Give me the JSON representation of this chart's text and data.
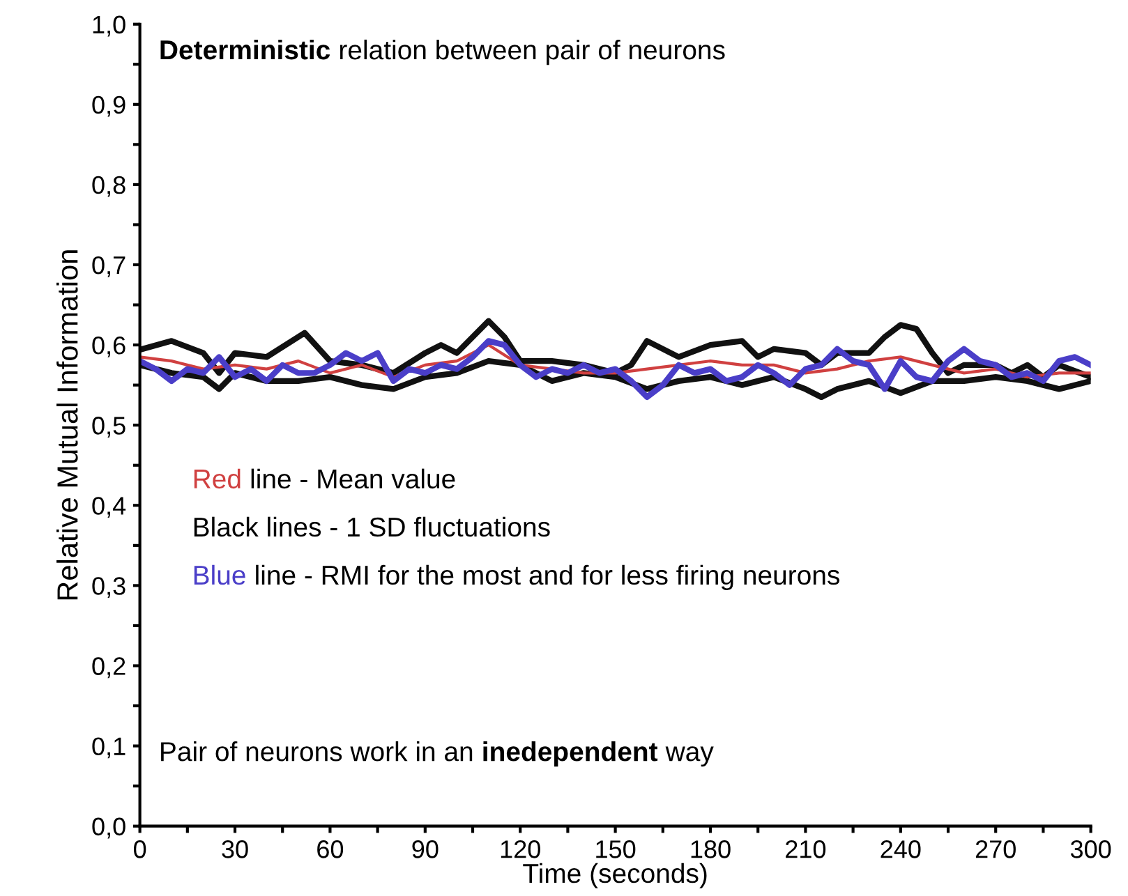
{
  "chart_data": {
    "type": "line",
    "xlabel": "Time (seconds)",
    "ylabel": "Relative Mutual Information",
    "xlim": [
      0,
      300
    ],
    "ylim": [
      0,
      1
    ],
    "xticks": [
      0,
      {
        "value": 15,
        "label": null
      },
      30,
      {
        "value": 45,
        "label": null
      },
      60,
      {
        "value": 75,
        "label": null
      },
      90,
      {
        "value": 105,
        "label": null
      },
      120,
      {
        "value": 135,
        "label": null
      },
      150,
      {
        "value": 165,
        "label": null
      },
      180,
      {
        "value": 195,
        "label": null
      },
      210,
      {
        "value": 225,
        "label": null
      },
      240,
      {
        "value": 255,
        "label": null
      },
      270,
      {
        "value": 285,
        "label": null
      },
      300
    ],
    "yticks": [
      {
        "value": 0,
        "label": "0,0"
      },
      {
        "value": 0.05,
        "label": null
      },
      {
        "value": 0.1,
        "label": "0,1"
      },
      {
        "value": 0.15,
        "label": null
      },
      {
        "value": 0.2,
        "label": "0,2"
      },
      {
        "value": 0.25,
        "label": null
      },
      {
        "value": 0.3,
        "label": "0,3"
      },
      {
        "value": 0.35,
        "label": null
      },
      {
        "value": 0.4,
        "label": "0,4"
      },
      {
        "value": 0.45,
        "label": null
      },
      {
        "value": 0.5,
        "label": "0,5"
      },
      {
        "value": 0.55,
        "label": null
      },
      {
        "value": 0.6,
        "label": "0,6"
      },
      {
        "value": 0.65,
        "label": null
      },
      {
        "value": 0.7,
        "label": "0,7"
      },
      {
        "value": 0.75,
        "label": null
      },
      {
        "value": 0.8,
        "label": "0,8"
      },
      {
        "value": 0.85,
        "label": null
      },
      {
        "value": 0.9,
        "label": "0,9"
      },
      {
        "value": 0.95,
        "label": null
      },
      {
        "value": 1.0,
        "label": "1,0"
      }
    ],
    "grid": false,
    "legend": false,
    "marker": "none",
    "line_style": "solid",
    "annotations": [
      "Deterministic",
      "relation between pair of neurons",
      "Red",
      "line - Mean value",
      "Black lines - 1 SD fluctuations",
      "Blue",
      "line - RMI for the most and for less firing neurons",
      "Pair of neurons work in an",
      "inedependent",
      "way"
    ],
    "series": [
      {
        "color": "#111111",
        "x": [
          0,
          10,
          20,
          25,
          30,
          40,
          52,
          60,
          70,
          80,
          90,
          95,
          100,
          110,
          115,
          120,
          130,
          140,
          150,
          155,
          160,
          165,
          170,
          180,
          190,
          195,
          200,
          210,
          215,
          220,
          230,
          235,
          240,
          245,
          250,
          255,
          260,
          270,
          275,
          280,
          285,
          290,
          300
        ],
        "values": [
          0.594,
          0.605,
          0.59,
          0.565,
          0.59,
          0.585,
          0.615,
          0.58,
          0.575,
          0.565,
          0.59,
          0.6,
          0.59,
          0.63,
          0.61,
          0.58,
          0.58,
          0.575,
          0.565,
          0.575,
          0.605,
          0.595,
          0.585,
          0.6,
          0.605,
          0.585,
          0.595,
          0.59,
          0.575,
          0.59,
          0.59,
          0.61,
          0.625,
          0.62,
          0.59,
          0.565,
          0.575,
          0.575,
          0.565,
          0.575,
          0.56,
          0.575,
          0.56
        ]
      },
      {
        "color": "#111111",
        "x": [
          0,
          10,
          20,
          25,
          30,
          40,
          50,
          60,
          70,
          80,
          90,
          100,
          110,
          120,
          130,
          140,
          150,
          160,
          170,
          180,
          190,
          200,
          210,
          215,
          220,
          230,
          240,
          250,
          260,
          270,
          280,
          290,
          300
        ],
        "values": [
          0.575,
          0.565,
          0.56,
          0.545,
          0.565,
          0.555,
          0.555,
          0.56,
          0.55,
          0.545,
          0.56,
          0.565,
          0.58,
          0.575,
          0.555,
          0.565,
          0.56,
          0.545,
          0.555,
          0.56,
          0.55,
          0.56,
          0.545,
          0.535,
          0.545,
          0.555,
          0.54,
          0.555,
          0.555,
          0.56,
          0.555,
          0.545,
          0.555
        ]
      },
      {
        "color": "#d04040",
        "x": [
          0,
          10,
          20,
          30,
          40,
          50,
          60,
          70,
          80,
          90,
          100,
          110,
          120,
          130,
          140,
          150,
          160,
          170,
          180,
          190,
          200,
          210,
          220,
          230,
          240,
          250,
          260,
          270,
          280,
          290,
          300
        ],
        "values": [
          0.585,
          0.58,
          0.57,
          0.575,
          0.57,
          0.58,
          0.565,
          0.575,
          0.56,
          0.575,
          0.58,
          0.6,
          0.575,
          0.57,
          0.565,
          0.565,
          0.57,
          0.575,
          0.58,
          0.575,
          0.575,
          0.565,
          0.57,
          0.58,
          0.585,
          0.575,
          0.565,
          0.57,
          0.56,
          0.565,
          0.565
        ]
      },
      {
        "color": "#4a3ec8",
        "x": [
          0,
          5,
          10,
          15,
          20,
          25,
          30,
          35,
          40,
          45,
          50,
          55,
          60,
          65,
          70,
          75,
          80,
          85,
          90,
          95,
          100,
          105,
          110,
          115,
          120,
          125,
          130,
          135,
          140,
          145,
          150,
          155,
          160,
          165,
          170,
          175,
          180,
          185,
          190,
          195,
          200,
          205,
          210,
          215,
          220,
          225,
          230,
          235,
          240,
          245,
          250,
          255,
          260,
          265,
          270,
          275,
          280,
          285,
          290,
          295,
          300
        ],
        "values": [
          0.58,
          0.57,
          0.555,
          0.57,
          0.565,
          0.585,
          0.56,
          0.57,
          0.555,
          0.575,
          0.565,
          0.565,
          0.575,
          0.59,
          0.58,
          0.59,
          0.555,
          0.57,
          0.565,
          0.575,
          0.57,
          0.585,
          0.605,
          0.6,
          0.575,
          0.56,
          0.57,
          0.565,
          0.575,
          0.565,
          0.57,
          0.555,
          0.535,
          0.55,
          0.575,
          0.565,
          0.57,
          0.555,
          0.56,
          0.575,
          0.565,
          0.55,
          0.57,
          0.575,
          0.595,
          0.58,
          0.575,
          0.545,
          0.58,
          0.56,
          0.555,
          0.58,
          0.595,
          0.58,
          0.575,
          0.56,
          0.565,
          0.555,
          0.58,
          0.585,
          0.575
        ]
      }
    ]
  }
}
